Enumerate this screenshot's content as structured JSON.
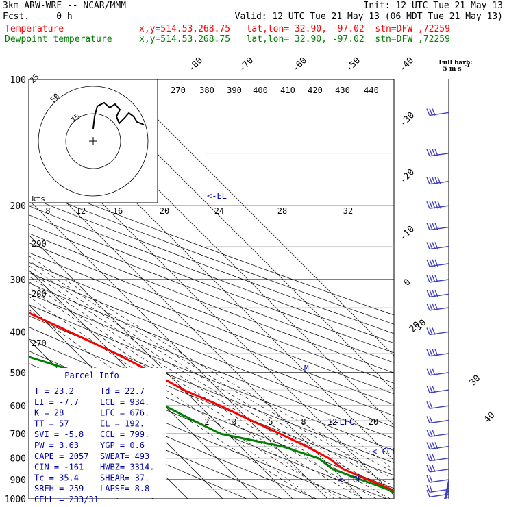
{
  "header": {
    "model": "3km ARW-WRF -- NCAR/MMM",
    "init": "Init: 12 UTC Tue 21 May 13",
    "fcst": "Fcst.     0 h",
    "valid": "Valid: 12 UTC Tue 21 May 13 (06 MDT Tue 21 May 13)",
    "temp_label": "Temperature",
    "temp_info": "x,y=514.53,268.75   lat,lon= 32.90, -97.02  stn=DFW ,72259",
    "dew_label": "Dewpoint temperature",
    "dew_info": "x,y=514.53,268.75   lat,lon= 32.90, -97.02  stn=DFW ,72259",
    "barb_note_1": "Full barb:",
    "barb_note_2": "5 m s",
    "barb_note_3": "-1"
  },
  "colors": {
    "temperature": "#ff0000",
    "dewpoint": "#008000",
    "info": "#0000aa",
    "wind": "#4040c0",
    "grid": "#000000"
  },
  "chart_data": {
    "type": "line",
    "title": "",
    "xlabel": "",
    "ylabel": "",
    "pressure_levels": [
      100,
      200,
      300,
      400,
      500,
      600,
      700,
      800,
      900,
      1000
    ],
    "temperature_ticks": [
      -80,
      -70,
      -60,
      -50,
      -40,
      -30,
      -20,
      -10,
      0,
      10,
      20,
      30,
      40
    ],
    "theta_ticks": [
      "270",
      "380",
      "390",
      "400",
      "410",
      "420",
      "430",
      "440"
    ],
    "mixing_ratio_ticks": [
      "2",
      "3",
      "5",
      "8",
      "12",
      "20"
    ],
    "hodograph": {
      "units_label": "kts",
      "speed_ticks": [
        "8",
        "12",
        "16",
        "20",
        "24",
        "28",
        "32"
      ],
      "ring_labels": [
        "25",
        "50",
        "75"
      ],
      "theta_side_labels": [
        "290",
        "280",
        "270"
      ]
    },
    "levels_labels": [
      "<-EL",
      "<-LFC",
      "<-CCL",
      "<-LCL"
    ],
    "series": [
      {
        "name": "Temperature",
        "points": [
          [
            100,
            -60.5
          ],
          [
            150,
            -58
          ],
          [
            200,
            -57
          ],
          [
            250,
            -52
          ],
          [
            300,
            -43
          ],
          [
            350,
            -34
          ],
          [
            400,
            -26
          ],
          [
            450,
            -19
          ],
          [
            500,
            -14
          ],
          [
            550,
            -10
          ],
          [
            600,
            -4
          ],
          [
            650,
            0.5
          ],
          [
            700,
            5
          ],
          [
            750,
            9
          ],
          [
            800,
            12
          ],
          [
            850,
            13
          ],
          [
            900,
            17
          ],
          [
            950,
            21
          ],
          [
            1000,
            23.2
          ]
        ]
      },
      {
        "name": "Dewpoint temperature",
        "points": [
          [
            100,
            -90
          ],
          [
            150,
            -87
          ],
          [
            200,
            -82
          ],
          [
            250,
            -79
          ],
          [
            300,
            -66
          ],
          [
            350,
            -54
          ],
          [
            400,
            -50
          ],
          [
            450,
            -47
          ],
          [
            500,
            -35
          ],
          [
            550,
            -26
          ],
          [
            600,
            -20
          ],
          [
            650,
            -16
          ],
          [
            700,
            -12
          ],
          [
            750,
            2
          ],
          [
            800,
            9
          ],
          [
            850,
            10
          ],
          [
            900,
            15
          ],
          [
            950,
            20
          ],
          [
            1000,
            22.7
          ]
        ]
      }
    ],
    "wind_barbs": [
      {
        "p": 120,
        "speed_kts": 25
      },
      {
        "p": 150,
        "speed_kts": 40
      },
      {
        "p": 175,
        "speed_kts": 45
      },
      {
        "p": 200,
        "speed_kts": 45
      },
      {
        "p": 225,
        "speed_kts": 40
      },
      {
        "p": 250,
        "speed_kts": 35
      },
      {
        "p": 275,
        "speed_kts": 35
      },
      {
        "p": 300,
        "speed_kts": 40
      },
      {
        "p": 325,
        "speed_kts": 40
      },
      {
        "p": 350,
        "speed_kts": 35
      },
      {
        "p": 400,
        "speed_kts": 30
      },
      {
        "p": 450,
        "speed_kts": 35
      },
      {
        "p": 500,
        "speed_kts": 25
      },
      {
        "p": 550,
        "speed_kts": 25
      },
      {
        "p": 600,
        "speed_kts": 20
      },
      {
        "p": 650,
        "speed_kts": 20
      },
      {
        "p": 700,
        "speed_kts": 30
      },
      {
        "p": 750,
        "speed_kts": 35
      },
      {
        "p": 800,
        "speed_kts": 30
      },
      {
        "p": 850,
        "speed_kts": 25
      },
      {
        "p": 900,
        "speed_kts": 20
      },
      {
        "p": 950,
        "speed_kts": 15
      },
      {
        "p": 975,
        "speed_kts": 10
      }
    ]
  },
  "parcel_info": {
    "title": "Parcel Info",
    "rows": [
      [
        "T  =     23.2",
        "Td =   22.7"
      ],
      [
        "LI =     -7.7",
        "LCL =  934."
      ],
      [
        "K  =       28",
        "LFC =  676."
      ],
      [
        "TT =       57",
        "EL  =  192."
      ],
      [
        "SVI =    -5.8",
        "CCL =  799."
      ],
      [
        "PW =     3.63",
        "YGP =   0.6"
      ],
      [
        "CAPE =   2057",
        "SWEAT=  493"
      ],
      [
        "CIN =    -161",
        "HWBZ= 3314."
      ],
      [
        "Tc =     35.4",
        "SHEAR=  37."
      ],
      [
        "SREH =    259",
        "LAPSE=  8.8"
      ],
      [
        "CELL = 233/31",
        ""
      ]
    ]
  }
}
